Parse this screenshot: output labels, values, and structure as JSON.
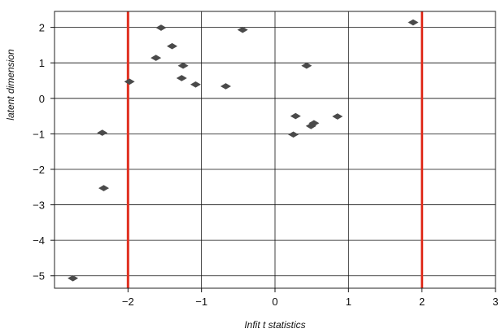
{
  "chart_data": {
    "type": "scatter",
    "title": "",
    "xlabel": "Infit t statistics",
    "ylabel": "latent dimension",
    "xlim": [
      -3.0,
      3.0
    ],
    "ylim": [
      -5.35,
      2.45
    ],
    "x_ticks": [
      -2,
      -1,
      0,
      1,
      2,
      3
    ],
    "x_tick_labels": [
      "−2",
      "−1",
      "0",
      "1",
      "2",
      "3"
    ],
    "y_ticks": [
      2,
      1,
      0,
      -1,
      -2,
      -3,
      -4,
      -5
    ],
    "y_tick_labels": [
      "2",
      "1",
      "0",
      "−1",
      "−2",
      "−3",
      "−4",
      "−5"
    ],
    "grid": true,
    "marker": "diamond",
    "marker_color": "#4a4a4a",
    "reference_lines": {
      "orientation": "vertical",
      "x": [
        -2,
        2
      ],
      "color": "#e03020"
    },
    "points": [
      {
        "x": -2.75,
        "y": -5.07
      },
      {
        "x": -2.35,
        "y": -0.97
      },
      {
        "x": -2.33,
        "y": -2.53
      },
      {
        "x": -1.98,
        "y": 0.47
      },
      {
        "x": -1.55,
        "y": 1.99
      },
      {
        "x": -1.62,
        "y": 1.14
      },
      {
        "x": -1.4,
        "y": 1.47
      },
      {
        "x": -1.25,
        "y": 0.92
      },
      {
        "x": -1.27,
        "y": 0.57
      },
      {
        "x": -1.08,
        "y": 0.39
      },
      {
        "x": -0.67,
        "y": 0.34
      },
      {
        "x": -0.44,
        "y": 1.93
      },
      {
        "x": 0.43,
        "y": 0.92
      },
      {
        "x": 0.28,
        "y": -0.5
      },
      {
        "x": 0.25,
        "y": -1.02
      },
      {
        "x": 0.49,
        "y": -0.78
      },
      {
        "x": 0.53,
        "y": -0.7
      },
      {
        "x": 0.85,
        "y": -0.51
      },
      {
        "x": 1.88,
        "y": 2.14
      }
    ]
  }
}
